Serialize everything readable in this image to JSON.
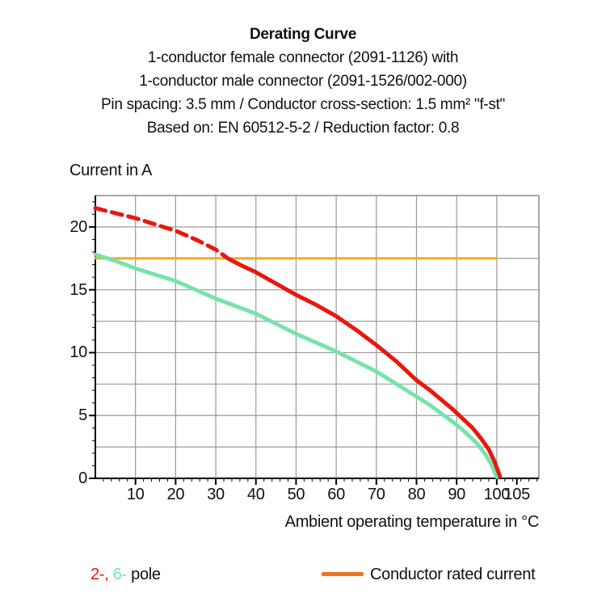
{
  "header": {
    "title": "Derating Curve",
    "lines": [
      "1-conductor female connector (2091-1126) with",
      "1-conductor male connector (2091-1526/002-000)",
      "Pin spacing: 3.5 mm / Conductor cross-section: 1.5 mm² \"f-st\"",
      "Based on: EN 60512-5-2 / Reduction factor: 0.8"
    ]
  },
  "colors": {
    "red": "#e9170e",
    "green": "#79e2ac",
    "orange_line": "#fbaa1d",
    "legend_orange": "#f0741e",
    "grid": "#999999",
    "border": "#8a8a8a",
    "axis": "#000000",
    "text": "#111111"
  },
  "chart_data": {
    "type": "line",
    "title": "Derating Curve",
    "xlabel": "Ambient operating temperature in °C",
    "ylabel": "Current in A",
    "xlim": [
      0,
      110.5
    ],
    "ylim": [
      0,
      22.5
    ],
    "grid": "on",
    "x_gridlines": [
      10,
      20,
      30,
      40,
      50,
      60,
      70,
      80,
      90,
      100
    ],
    "y_gridlines": [
      2.5,
      5,
      7.5,
      10,
      12.5,
      15,
      17.5,
      20
    ],
    "x_ticks_labeled": [
      10,
      20,
      30,
      40,
      50,
      60,
      70,
      80,
      90,
      100,
      105
    ],
    "y_ticks_labeled": [
      0,
      5,
      10,
      15,
      20
    ],
    "x_minor_tick_every": 2,
    "y_minor_tick_every": 1,
    "series": [
      {
        "name": "Conductor rated current",
        "color": "#fbaa1d",
        "style": "solid",
        "width": 3,
        "points": [
          [
            0,
            17.5
          ],
          [
            100,
            17.5
          ]
        ]
      },
      {
        "name": "6-pole",
        "color": "#79e2ac",
        "style": "solid",
        "width": 5,
        "points": [
          [
            0,
            17.8
          ],
          [
            5,
            17.3
          ],
          [
            10,
            16.7
          ],
          [
            15,
            16.2
          ],
          [
            20,
            15.7
          ],
          [
            25,
            15.0
          ],
          [
            30,
            14.3
          ],
          [
            35,
            13.7
          ],
          [
            40,
            13.1
          ],
          [
            45,
            12.3
          ],
          [
            50,
            11.5
          ],
          [
            55,
            10.8
          ],
          [
            60,
            10.1
          ],
          [
            65,
            9.3
          ],
          [
            70,
            8.5
          ],
          [
            75,
            7.5
          ],
          [
            80,
            6.5
          ],
          [
            83,
            5.9
          ],
          [
            86,
            5.2
          ],
          [
            89,
            4.5
          ],
          [
            91,
            4.0
          ],
          [
            93,
            3.4
          ],
          [
            95,
            2.8
          ],
          [
            97,
            2.0
          ],
          [
            98.5,
            1.2
          ],
          [
            100,
            0.1
          ]
        ]
      },
      {
        "name": "2-pole (above rated current)",
        "color": "#e9170e",
        "style": "dashed",
        "width": 5,
        "points": [
          [
            0,
            21.5
          ],
          [
            5,
            21.1
          ],
          [
            10,
            20.7
          ],
          [
            15,
            20.2
          ],
          [
            20,
            19.7
          ],
          [
            25,
            19.0
          ],
          [
            30,
            18.2
          ],
          [
            33,
            17.5
          ]
        ]
      },
      {
        "name": "2-pole",
        "color": "#e9170e",
        "style": "solid",
        "width": 5,
        "points": [
          [
            33,
            17.5
          ],
          [
            36,
            17.0
          ],
          [
            40,
            16.4
          ],
          [
            45,
            15.5
          ],
          [
            50,
            14.6
          ],
          [
            55,
            13.8
          ],
          [
            60,
            12.9
          ],
          [
            65,
            11.8
          ],
          [
            70,
            10.6
          ],
          [
            75,
            9.3
          ],
          [
            80,
            7.8
          ],
          [
            83,
            7.1
          ],
          [
            86,
            6.3
          ],
          [
            89,
            5.5
          ],
          [
            92,
            4.6
          ],
          [
            94,
            4.0
          ],
          [
            96,
            3.2
          ],
          [
            98,
            2.3
          ],
          [
            99.5,
            1.3
          ],
          [
            100.8,
            0.15
          ]
        ]
      }
    ]
  },
  "legend": {
    "pole_parts": [
      {
        "text": "2-, ",
        "color": "#e9170e"
      },
      {
        "text": "6-",
        "color": "#79e2ac"
      },
      {
        "text": " pole",
        "color": "#111111"
      }
    ],
    "rated_label": "Conductor rated current",
    "swatch_color": "#f0741e"
  }
}
